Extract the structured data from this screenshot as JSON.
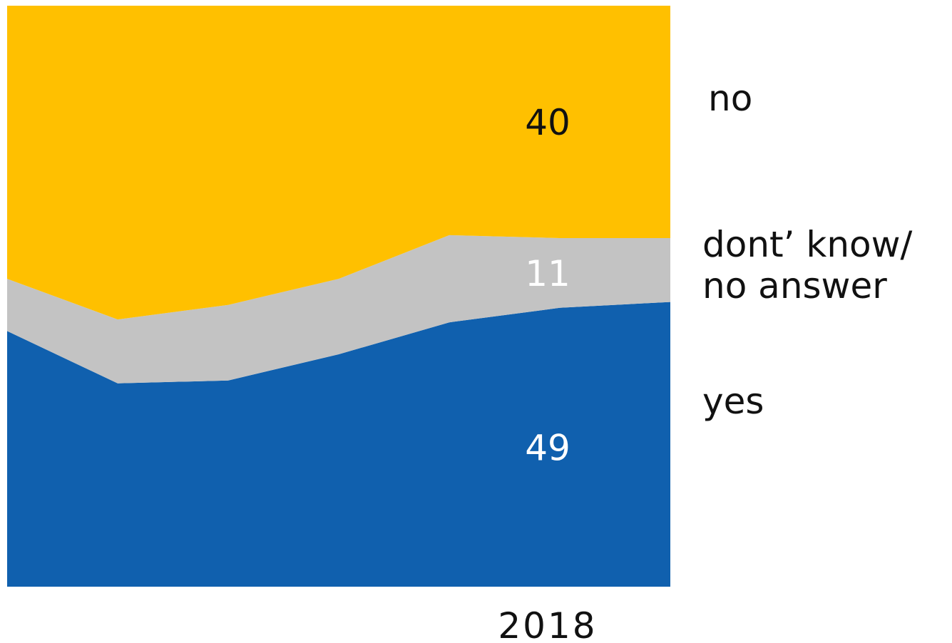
{
  "chart_data": {
    "type": "area",
    "stacked": true,
    "x_tick_labels": [
      "2018"
    ],
    "ylim": [
      0,
      100
    ],
    "grid": false,
    "legend": "right",
    "series": [
      {
        "name": "yes",
        "color": "#1060AE",
        "label_color": "#FFFFFF",
        "values": [
          44,
          35,
          35.5,
          40,
          45.5,
          48,
          49
        ],
        "end_label": "49"
      },
      {
        "name": "dont’ know/ no answer",
        "name_lines": [
          "dont’ know/",
          "no answer"
        ],
        "color": "#C3C3C3",
        "label_color": "#FFFFFF",
        "values": [
          9,
          11,
          13,
          13,
          15,
          12,
          11
        ],
        "end_label": "11"
      },
      {
        "name": "no",
        "color": "#FFC000",
        "label_color": "#111111",
        "values": [
          47,
          54,
          51.5,
          47,
          39.5,
          40,
          40
        ],
        "end_label": "40"
      }
    ]
  }
}
